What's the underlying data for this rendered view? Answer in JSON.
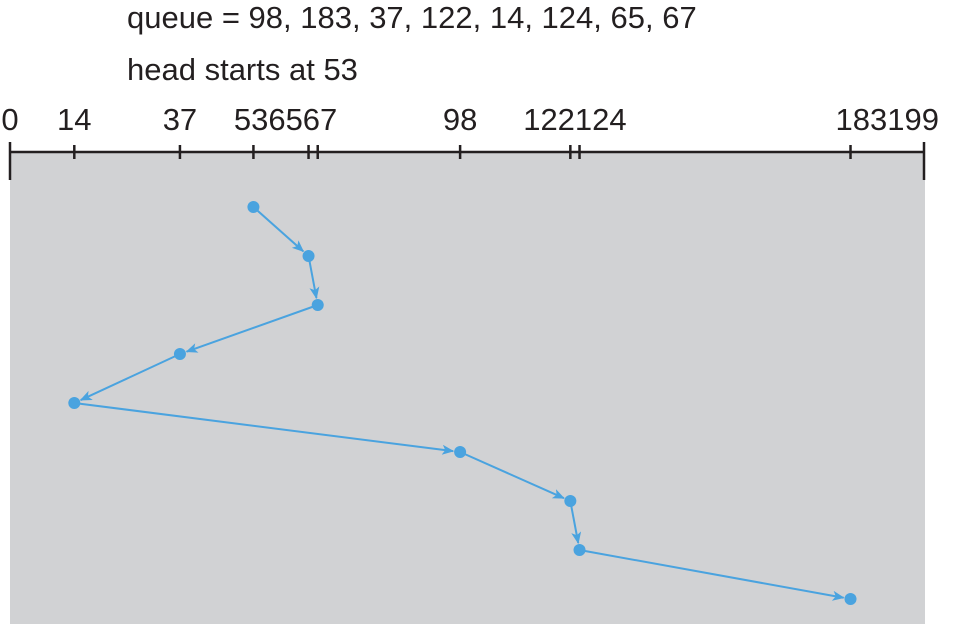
{
  "header": {
    "queue_text": "queue = 98, 183, 37, 122, 14, 124, 65, 67",
    "head_text": "head starts at 53"
  },
  "axis": {
    "min": 0,
    "max": 199,
    "tick_values": [
      0,
      14,
      37,
      53,
      65,
      67,
      98,
      122,
      124,
      183,
      199
    ],
    "tick_labels": [
      {
        "text": "0",
        "value": 0
      },
      {
        "text": "14",
        "value": 14
      },
      {
        "text": "37",
        "value": 37
      },
      {
        "text": "536567",
        "value": 60
      },
      {
        "text": "98",
        "value": 98
      },
      {
        "text": "122124",
        "value": 123
      },
      {
        "text": "183199",
        "value": 191
      }
    ]
  },
  "path": {
    "service_order": [
      53,
      65,
      67,
      37,
      14,
      98,
      122,
      124,
      183
    ]
  },
  "colors": {
    "accent": "#4aa3df",
    "panel": "#d1d2d4",
    "axis": "#231f20"
  }
}
